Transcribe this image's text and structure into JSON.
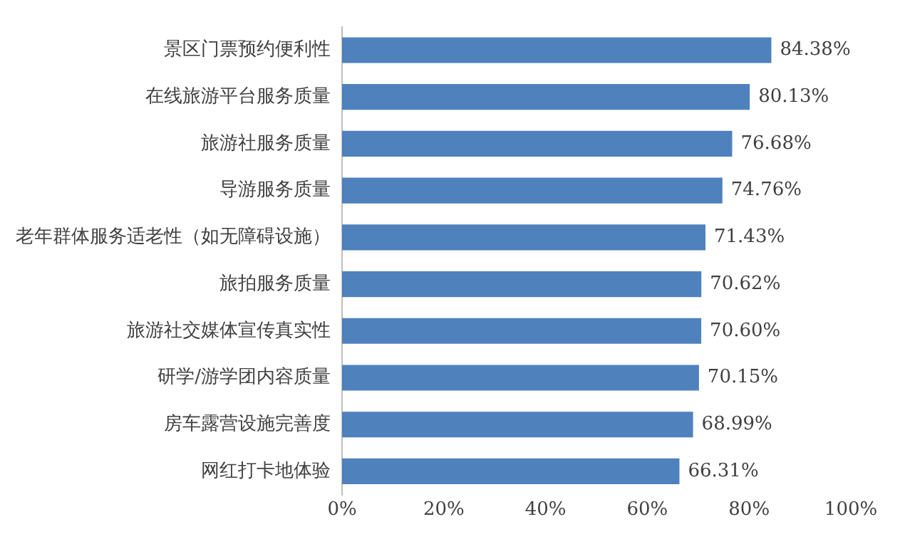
{
  "chart_data": {
    "type": "bar",
    "orientation": "horizontal",
    "categories": [
      "景区门票预约便利性",
      "在线旅游平台服务质量",
      "旅游社服务质量",
      "导游服务质量",
      "老年群体服务适老性（如无障碍设施）",
      "旅拍服务质量",
      "旅游社交媒体宣传真实性",
      "研学/游学团内容质量",
      "房车露营设施完善度",
      "网红打卡地体验"
    ],
    "values": [
      84.38,
      80.13,
      76.68,
      74.76,
      71.43,
      70.62,
      70.6,
      70.15,
      68.99,
      66.31
    ],
    "value_labels": [
      "84.38%",
      "80.13%",
      "76.68%",
      "74.76%",
      "71.43%",
      "70.62%",
      "70.60%",
      "70.15%",
      "68.99%",
      "66.31%"
    ],
    "color": "#4f81bd",
    "xlim": [
      0,
      100
    ],
    "xticks": [
      {
        "value": 0,
        "label": "0%"
      },
      {
        "value": 20,
        "label": "20%"
      },
      {
        "value": 40,
        "label": "40%"
      },
      {
        "value": 60,
        "label": "60%"
      },
      {
        "value": 80,
        "label": "80%"
      },
      {
        "value": 100,
        "label": "100%"
      }
    ],
    "grid": false,
    "legend": false
  }
}
